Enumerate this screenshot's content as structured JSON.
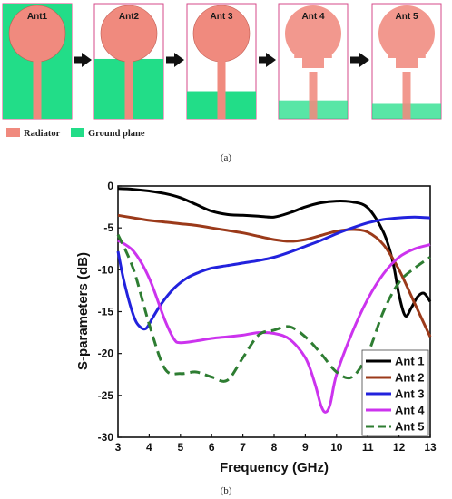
{
  "figure": {
    "antennas": [
      {
        "label": "Ant1",
        "ground_fraction": 1.0
      },
      {
        "label": "Ant2",
        "ground_fraction": 0.52
      },
      {
        "label": "Ant 3",
        "ground_fraction": 0.24
      },
      {
        "label": "Ant 4",
        "ground_fraction": 0.16
      },
      {
        "label": "Ant 5",
        "ground_fraction": 0.13
      }
    ],
    "legend": {
      "radiator": "Radiator",
      "ground": "Ground plane"
    },
    "caption_a": "(a)",
    "caption_b": "(b)",
    "colors": {
      "radiator": "#f08a7e",
      "ground": "#22dd88",
      "frame": "#d44a8a",
      "arrow": "#111111"
    }
  },
  "chart_data": {
    "type": "line",
    "xlabel": "Frequency (GHz)",
    "ylabel": "S-parameters (dB)",
    "xlim": [
      3,
      13
    ],
    "ylim": [
      -30,
      0
    ],
    "xticks": [
      3,
      4,
      5,
      6,
      7,
      8,
      9,
      10,
      11,
      12,
      13
    ],
    "yticks": [
      0,
      -5,
      -10,
      -15,
      -20,
      -25,
      -30
    ],
    "legend_position": "bottom-right",
    "series": [
      {
        "name": "Ant 1",
        "color": "#000000",
        "dash": "solid",
        "x": [
          3,
          3.5,
          4,
          4.5,
          5,
          5.5,
          6,
          6.5,
          7,
          7.5,
          8,
          8.5,
          9,
          9.5,
          10,
          10.5,
          11,
          11.5,
          11.8,
          12,
          12.2,
          12.4,
          12.6,
          12.8,
          13
        ],
        "y": [
          -0.3,
          -0.4,
          -0.6,
          -0.9,
          -1.4,
          -2.2,
          -3.0,
          -3.4,
          -3.5,
          -3.6,
          -3.7,
          -3.2,
          -2.5,
          -2.0,
          -1.8,
          -1.9,
          -2.6,
          -5.5,
          -9.0,
          -13.0,
          -15.5,
          -14.5,
          -13.2,
          -12.8,
          -13.8
        ]
      },
      {
        "name": "Ant 2",
        "color": "#9b3a1a",
        "dash": "solid",
        "x": [
          3,
          3.5,
          4,
          4.5,
          5,
          5.5,
          6,
          6.5,
          7,
          7.5,
          8,
          8.5,
          9,
          9.5,
          10,
          10.5,
          11,
          11.5,
          12,
          12.5,
          13
        ],
        "y": [
          -3.5,
          -3.8,
          -4.1,
          -4.3,
          -4.5,
          -4.7,
          -5.0,
          -5.3,
          -5.6,
          -6.0,
          -6.4,
          -6.6,
          -6.4,
          -5.9,
          -5.4,
          -5.2,
          -5.5,
          -7.0,
          -10.0,
          -14.0,
          -18.0
        ]
      },
      {
        "name": "Ant 3",
        "color": "#2222dd",
        "dash": "solid",
        "x": [
          3,
          3.2,
          3.5,
          3.7,
          3.9,
          4.1,
          4.4,
          4.8,
          5.2,
          5.6,
          6,
          6.5,
          7,
          7.5,
          8,
          8.5,
          9,
          9.5,
          10,
          10.5,
          11,
          11.5,
          12,
          12.5,
          13
        ],
        "y": [
          -7.8,
          -11.5,
          -15.5,
          -16.8,
          -17.0,
          -15.8,
          -14.0,
          -12.2,
          -11.0,
          -10.3,
          -9.8,
          -9.5,
          -9.2,
          -8.9,
          -8.5,
          -7.9,
          -7.2,
          -6.5,
          -5.7,
          -5.0,
          -4.4,
          -4.0,
          -3.8,
          -3.7,
          -3.8
        ]
      },
      {
        "name": "Ant 4",
        "color": "#cc33ee",
        "dash": "solid",
        "x": [
          3,
          3.5,
          4,
          4.5,
          4.8,
          5,
          5.5,
          6,
          6.5,
          7,
          7.5,
          8,
          8.5,
          9,
          9.3,
          9.5,
          9.65,
          9.8,
          10,
          10.5,
          11,
          11.5,
          12,
          12.5,
          13
        ],
        "y": [
          -6.5,
          -7.8,
          -11.0,
          -16.0,
          -18.3,
          -18.7,
          -18.5,
          -18.2,
          -18.0,
          -17.8,
          -17.5,
          -17.6,
          -18.3,
          -20.5,
          -23.5,
          -26.2,
          -27.0,
          -26.0,
          -22.5,
          -17.5,
          -13.5,
          -10.5,
          -8.5,
          -7.5,
          -7.0
        ]
      },
      {
        "name": "Ant 5",
        "color": "#2e7d32",
        "dash": "dashed",
        "x": [
          3,
          3.5,
          4,
          4.5,
          5,
          5.5,
          6,
          6.5,
          7,
          7.5,
          8,
          8.5,
          9,
          9.5,
          10,
          10.5,
          11,
          11.5,
          12,
          12.5,
          13
        ],
        "y": [
          -5.8,
          -10.0,
          -16.5,
          -21.8,
          -22.4,
          -22.2,
          -22.8,
          -23.2,
          -20.5,
          -17.8,
          -17.2,
          -16.8,
          -18.0,
          -20.0,
          -22.2,
          -22.8,
          -20.0,
          -15.0,
          -11.5,
          -9.8,
          -8.5
        ]
      }
    ]
  }
}
